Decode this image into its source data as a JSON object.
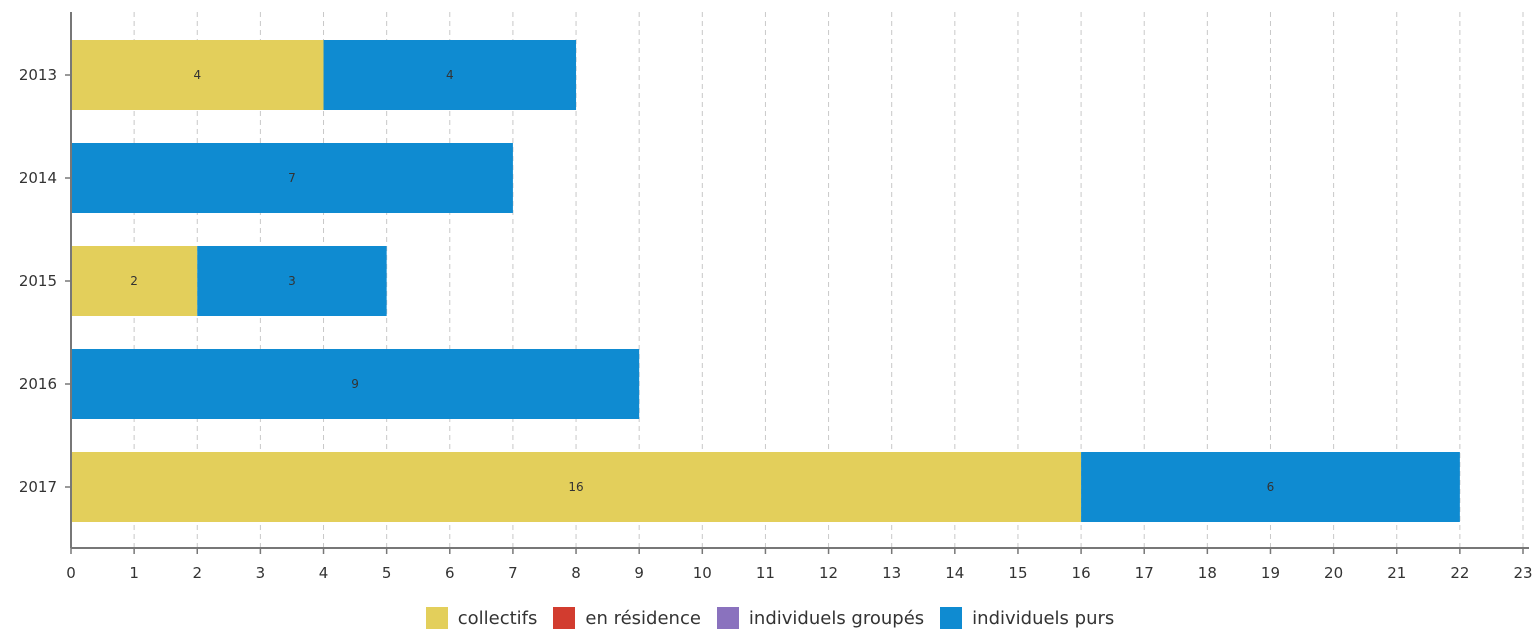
{
  "chart_data": {
    "type": "bar",
    "orientation": "horizontal",
    "stacked": true,
    "categories": [
      "2013",
      "2014",
      "2015",
      "2016",
      "2017"
    ],
    "series": [
      {
        "name": "collectifs",
        "color": "#e3cf5b",
        "values": [
          4,
          0,
          2,
          0,
          16
        ]
      },
      {
        "name": "en résidence",
        "color": "#d23c2f",
        "values": [
          0,
          0,
          0,
          0,
          0
        ]
      },
      {
        "name": "individuels groupés",
        "color": "#8a72be",
        "values": [
          0,
          0,
          0,
          0,
          0
        ]
      },
      {
        "name": "individuels purs",
        "color": "#0f8bd1",
        "values": [
          4,
          7,
          3,
          9,
          6
        ]
      }
    ],
    "xlim": [
      0,
      23
    ],
    "x_ticks": [
      "0",
      "1",
      "2",
      "3",
      "4",
      "5",
      "6",
      "7",
      "8",
      "9",
      "10",
      "11",
      "12",
      "13",
      "14",
      "15",
      "16",
      "17",
      "18",
      "19",
      "20",
      "21",
      "22",
      "23"
    ],
    "grid": "vertical dashed",
    "legend_position": "bottom-center",
    "title": "",
    "xlabel": "",
    "ylabel": ""
  }
}
